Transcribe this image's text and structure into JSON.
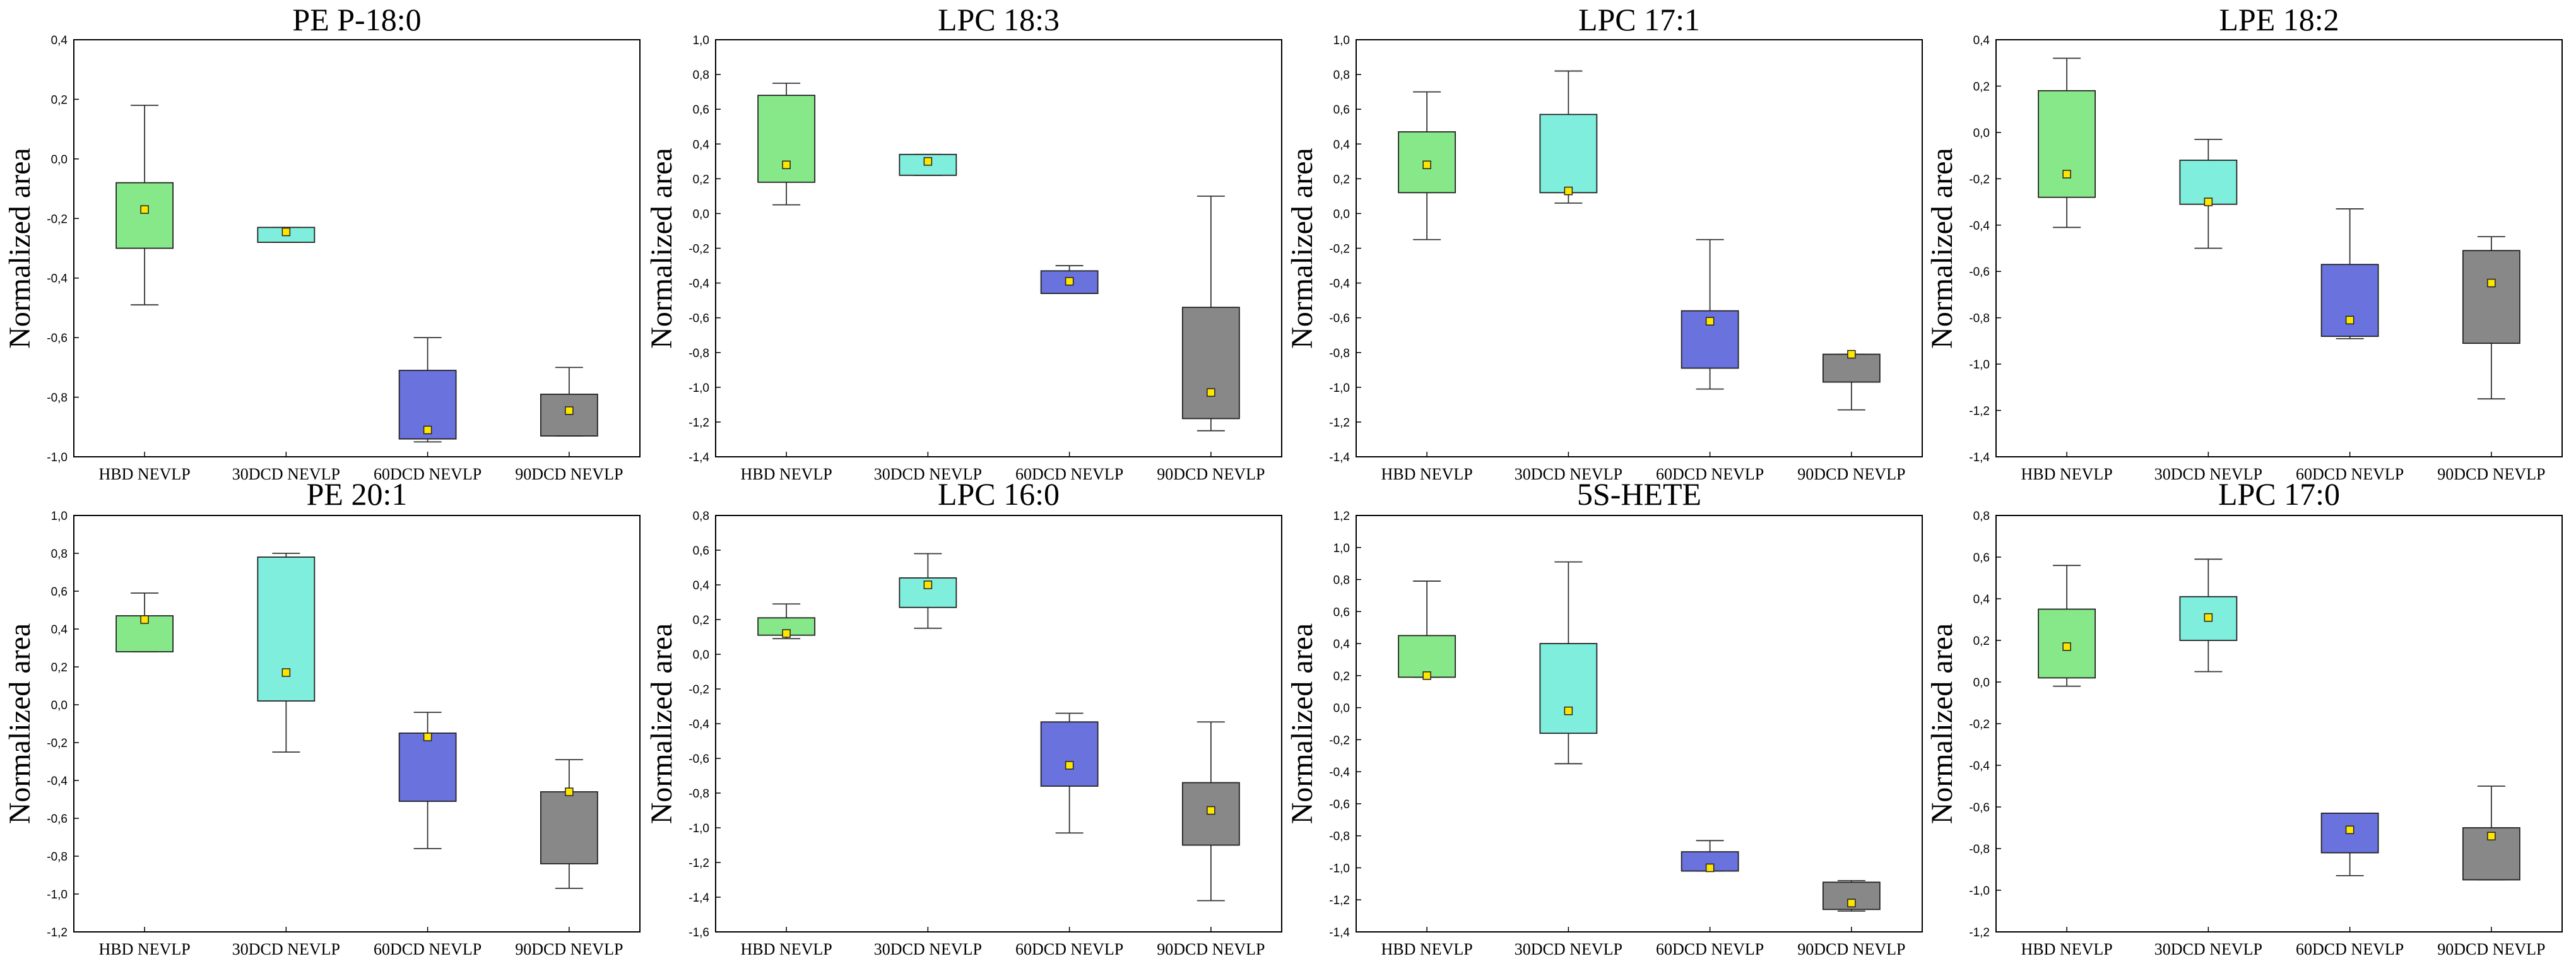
{
  "chart_data": [
    {
      "type": "box",
      "title": "PE P-18:0",
      "ylabel": "Normalized area",
      "ylim": [
        -1.0,
        0.4
      ],
      "yticks": [
        "-1,0",
        "-0,8",
        "-0,6",
        "-0,4",
        "-0,2",
        "0,0",
        "0,2",
        "0,4"
      ],
      "categories": [
        "HBD NEVLP",
        "30DCD NEVLP",
        "60DCD NEVLP",
        "90DCD NEVLP"
      ],
      "colors": [
        "#86e889",
        "#7feedd",
        "#6a72de",
        "#888888"
      ],
      "boxes": [
        {
          "min": -0.49,
          "q1": -0.3,
          "q3": -0.08,
          "max": 0.18,
          "mean": -0.17
        },
        {
          "min": -0.28,
          "q1": -0.28,
          "q3": -0.23,
          "max": -0.23,
          "mean": -0.245
        },
        {
          "min": -0.95,
          "q1": -0.94,
          "q3": -0.71,
          "max": -0.6,
          "mean": -0.91
        },
        {
          "min": -0.93,
          "q1": -0.93,
          "q3": -0.79,
          "max": -0.7,
          "mean": -0.845
        }
      ]
    },
    {
      "type": "box",
      "title": "LPC 18:3",
      "ylabel": "Normalized area",
      "ylim": [
        -1.4,
        1.0
      ],
      "yticks": [
        "-1,4",
        "-1,2",
        "-1,0",
        "-0,8",
        "-0,6",
        "-0,4",
        "-0,2",
        "0,0",
        "0,2",
        "0,4",
        "0,6",
        "0,8",
        "1,0"
      ],
      "categories": [
        "HBD NEVLP",
        "30DCD NEVLP",
        "60DCD NEVLP",
        "90DCD NEVLP"
      ],
      "colors": [
        "#86e889",
        "#7feedd",
        "#6a72de",
        "#888888"
      ],
      "boxes": [
        {
          "min": 0.05,
          "q1": 0.18,
          "q3": 0.68,
          "max": 0.75,
          "mean": 0.28
        },
        {
          "min": 0.22,
          "q1": 0.22,
          "q3": 0.34,
          "max": 0.34,
          "mean": 0.3
        },
        {
          "min": -0.46,
          "q1": -0.46,
          "q3": -0.33,
          "max": -0.3,
          "mean": -0.39
        },
        {
          "min": -1.25,
          "q1": -1.18,
          "q3": -0.54,
          "max": 0.1,
          "mean": -1.03
        }
      ]
    },
    {
      "type": "box",
      "title": "LPC 17:1",
      "ylabel": "Normalized area",
      "ylim": [
        -1.4,
        1.0
      ],
      "yticks": [
        "-1,4",
        "-1,2",
        "-1,0",
        "-0,8",
        "-0,6",
        "-0,4",
        "-0,2",
        "0,0",
        "0,2",
        "0,4",
        "0,6",
        "0,8",
        "1,0"
      ],
      "categories": [
        "HBD NEVLP",
        "30DCD NEVLP",
        "60DCD NEVLP",
        "90DCD NEVLP"
      ],
      "colors": [
        "#86e889",
        "#7feedd",
        "#6a72de",
        "#888888"
      ],
      "boxes": [
        {
          "min": -0.15,
          "q1": 0.12,
          "q3": 0.47,
          "max": 0.7,
          "mean": 0.28
        },
        {
          "min": 0.06,
          "q1": 0.12,
          "q3": 0.57,
          "max": 0.82,
          "mean": 0.13
        },
        {
          "min": -1.01,
          "q1": -0.89,
          "q3": -0.56,
          "max": -0.15,
          "mean": -0.62
        },
        {
          "min": -1.13,
          "q1": -0.97,
          "q3": -0.81,
          "max": -0.81,
          "mean": -0.81
        }
      ]
    },
    {
      "type": "box",
      "title": "LPE 18:2",
      "ylabel": "Normalized area",
      "ylim": [
        -1.4,
        0.4
      ],
      "yticks": [
        "-1,4",
        "-1,2",
        "-1,0",
        "-0,8",
        "-0,6",
        "-0,4",
        "-0,2",
        "0,0",
        "0,2",
        "0,4"
      ],
      "categories": [
        "HBD NEVLP",
        "30DCD NEVLP",
        "60DCD NEVLP",
        "90DCD NEVLP"
      ],
      "colors": [
        "#86e889",
        "#7feedd",
        "#6a72de",
        "#888888"
      ],
      "boxes": [
        {
          "min": -0.41,
          "q1": -0.28,
          "q3": 0.18,
          "max": 0.32,
          "mean": -0.18
        },
        {
          "min": -0.5,
          "q1": -0.31,
          "q3": -0.12,
          "max": -0.03,
          "mean": -0.3
        },
        {
          "min": -0.89,
          "q1": -0.88,
          "q3": -0.57,
          "max": -0.33,
          "mean": -0.81
        },
        {
          "min": -1.15,
          "q1": -0.91,
          "q3": -0.51,
          "max": -0.45,
          "mean": -0.65
        }
      ]
    },
    {
      "type": "box",
      "title": "PE 20:1",
      "ylabel": "Normalized area",
      "ylim": [
        -1.2,
        1.0
      ],
      "yticks": [
        "-1,2",
        "-1,0",
        "-0,8",
        "-0,6",
        "-0,4",
        "-0,2",
        "0,0",
        "0,2",
        "0,4",
        "0,6",
        "0,8",
        "1,0"
      ],
      "categories": [
        "HBD NEVLP",
        "30DCD NEVLP",
        "60DCD NEVLP",
        "90DCD NEVLP"
      ],
      "colors": [
        "#86e889",
        "#7feedd",
        "#6a72de",
        "#888888"
      ],
      "boxes": [
        {
          "min": 0.28,
          "q1": 0.28,
          "q3": 0.47,
          "max": 0.59,
          "mean": 0.45
        },
        {
          "min": -0.25,
          "q1": 0.02,
          "q3": 0.78,
          "max": 0.8,
          "mean": 0.17
        },
        {
          "min": -0.76,
          "q1": -0.51,
          "q3": -0.15,
          "max": -0.04,
          "mean": -0.17
        },
        {
          "min": -0.97,
          "q1": -0.84,
          "q3": -0.46,
          "max": -0.29,
          "mean": -0.46
        }
      ]
    },
    {
      "type": "box",
      "title": "LPC 16:0",
      "ylabel": "Normalized area",
      "ylim": [
        -1.6,
        0.8
      ],
      "yticks": [
        "-1,6",
        "-1,4",
        "-1,2",
        "-1,0",
        "-0,8",
        "-0,6",
        "-0,4",
        "-0,2",
        "0,0",
        "0,2",
        "0,4",
        "0,6",
        "0,8"
      ],
      "categories": [
        "HBD NEVLP",
        "30DCD NEVLP",
        "60DCD NEVLP",
        "90DCD NEVLP"
      ],
      "colors": [
        "#86e889",
        "#7feedd",
        "#6a72de",
        "#888888"
      ],
      "boxes": [
        {
          "min": 0.09,
          "q1": 0.11,
          "q3": 0.21,
          "max": 0.29,
          "mean": 0.12
        },
        {
          "min": 0.15,
          "q1": 0.27,
          "q3": 0.44,
          "max": 0.58,
          "mean": 0.4
        },
        {
          "min": -1.03,
          "q1": -0.76,
          "q3": -0.39,
          "max": -0.34,
          "mean": -0.64
        },
        {
          "min": -1.42,
          "q1": -1.1,
          "q3": -0.74,
          "max": -0.39,
          "mean": -0.9
        }
      ]
    },
    {
      "type": "box",
      "title": "5S-HETE",
      "ylabel": "Normalized area",
      "ylim": [
        -1.4,
        1.2
      ],
      "yticks": [
        "-1,4",
        "-1,2",
        "-1,0",
        "-0,8",
        "-0,6",
        "-0,4",
        "-0,2",
        "0,0",
        "0,2",
        "0,4",
        "0,6",
        "0,8",
        "1,0",
        "1,2"
      ],
      "categories": [
        "HBD NEVLP",
        "30DCD NEVLP",
        "60DCD NEVLP",
        "90DCD NEVLP"
      ],
      "colors": [
        "#86e889",
        "#7feedd",
        "#6a72de",
        "#888888"
      ],
      "boxes": [
        {
          "min": 0.19,
          "q1": 0.19,
          "q3": 0.45,
          "max": 0.79,
          "mean": 0.2
        },
        {
          "min": -0.35,
          "q1": -0.16,
          "q3": 0.4,
          "max": 0.91,
          "mean": -0.02
        },
        {
          "min": -1.02,
          "q1": -1.02,
          "q3": -0.9,
          "max": -0.83,
          "mean": -1.0
        },
        {
          "min": -1.27,
          "q1": -1.26,
          "q3": -1.09,
          "max": -1.08,
          "mean": -1.22
        }
      ]
    },
    {
      "type": "box",
      "title": "LPC 17:0",
      "ylabel": "Normalized area",
      "ylim": [
        -1.2,
        0.8
      ],
      "yticks": [
        "-1,2",
        "-1,0",
        "-0,8",
        "-0,6",
        "-0,4",
        "-0,2",
        "0,0",
        "0,2",
        "0,4",
        "0,6",
        "0,8"
      ],
      "categories": [
        "HBD NEVLP",
        "30DCD NEVLP",
        "60DCD NEVLP",
        "90DCD NEVLP"
      ],
      "colors": [
        "#86e889",
        "#7feedd",
        "#6a72de",
        "#888888"
      ],
      "boxes": [
        {
          "min": -0.02,
          "q1": 0.02,
          "q3": 0.35,
          "max": 0.56,
          "mean": 0.17
        },
        {
          "min": 0.05,
          "q1": 0.2,
          "q3": 0.41,
          "max": 0.59,
          "mean": 0.31
        },
        {
          "min": -0.93,
          "q1": -0.82,
          "q3": -0.63,
          "max": -0.63,
          "mean": -0.71
        },
        {
          "min": -0.95,
          "q1": -0.95,
          "q3": -0.7,
          "max": -0.5,
          "mean": -0.74
        }
      ]
    }
  ]
}
